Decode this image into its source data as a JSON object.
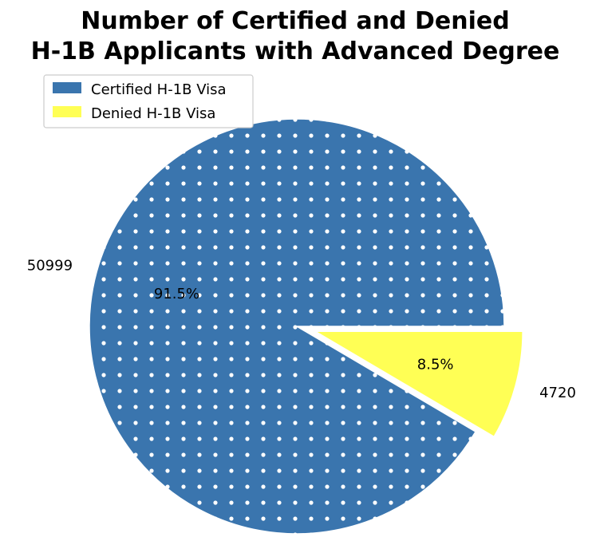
{
  "chart_data": {
    "type": "pie",
    "title": [
      "Number of Certified and Denied",
      "H-1B Applicants with Advanced Degree"
    ],
    "labels": [
      "Certified H-1B Visa",
      "Denied H-1B Visa"
    ],
    "values": [
      50999,
      4720
    ],
    "value_labels": [
      "50999",
      "4720"
    ],
    "percent_labels": [
      "91.5%",
      "8.5%"
    ],
    "colors": [
      "#3a75ae",
      "#ffff55"
    ],
    "patterns": [
      "dots",
      "none"
    ],
    "exploded": [
      false,
      true
    ],
    "legend_position": "top-left"
  }
}
